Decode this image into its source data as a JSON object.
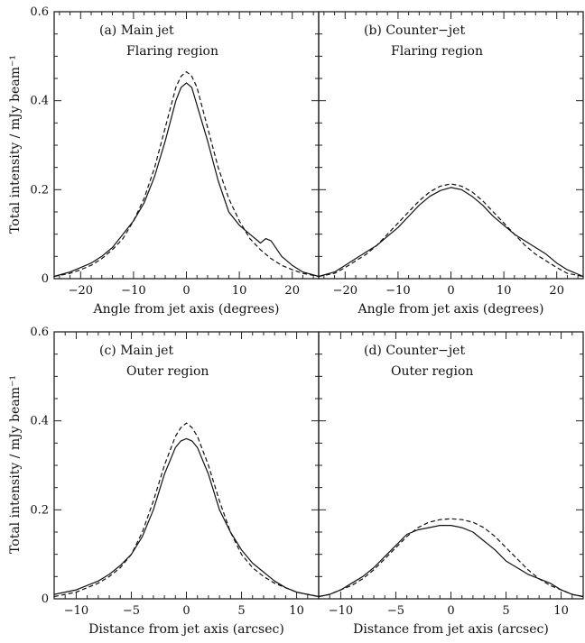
{
  "figure": {
    "ylabel": "Total intensity / mJy beam⁻¹"
  },
  "chart_data": [
    {
      "type": "line",
      "panel": "(a) Main jet",
      "label_line1": "(a) Main jet",
      "label_line2": "Flaring region",
      "xlabel": "Angle from jet axis (degrees)",
      "ylabel": "Total intensity / mJy beam⁻¹",
      "xlim": [
        -25,
        25
      ],
      "ylim": [
        0,
        0.6
      ],
      "xticks": [
        -20,
        -10,
        0,
        10,
        20
      ],
      "xtick_labels": [
        "−20",
        "−10",
        "0",
        "10",
        "20"
      ],
      "yticks": [
        0,
        0.2,
        0.4,
        0.6
      ],
      "ytick_labels": [
        "0",
        "0.2",
        "0.4",
        "0.6"
      ],
      "show_xtick_labels": true,
      "show_ytick_labels": true,
      "series": [
        {
          "style": "solid",
          "x": [
            -25,
            -22,
            -20,
            -18,
            -16,
            -14,
            -12,
            -10,
            -8,
            -6,
            -4,
            -2,
            -1,
            0,
            1,
            2,
            4,
            6,
            8,
            10,
            12,
            14,
            15,
            16,
            18,
            20,
            22,
            25
          ],
          "y": [
            0.005,
            0.015,
            0.025,
            0.035,
            0.05,
            0.07,
            0.1,
            0.13,
            0.17,
            0.23,
            0.31,
            0.4,
            0.43,
            0.44,
            0.43,
            0.39,
            0.31,
            0.22,
            0.15,
            0.12,
            0.1,
            0.08,
            0.09,
            0.085,
            0.05,
            0.03,
            0.015,
            0.005
          ]
        },
        {
          "style": "dashed",
          "x": [
            -25,
            -22,
            -20,
            -18,
            -16,
            -14,
            -12,
            -10,
            -8,
            -6,
            -4,
            -2,
            -1,
            0,
            1,
            2,
            4,
            6,
            8,
            10,
            12,
            14,
            16,
            18,
            20,
            22,
            25
          ],
          "y": [
            0.005,
            0.012,
            0.02,
            0.03,
            0.045,
            0.065,
            0.09,
            0.13,
            0.18,
            0.25,
            0.34,
            0.43,
            0.455,
            0.465,
            0.455,
            0.43,
            0.34,
            0.25,
            0.18,
            0.13,
            0.09,
            0.065,
            0.045,
            0.03,
            0.02,
            0.012,
            0.005
          ]
        }
      ]
    },
    {
      "type": "line",
      "panel": "(b) Counter-jet",
      "label_line1": "(b) Counter−jet",
      "label_line2": "Flaring region",
      "xlabel": "Angle from jet axis (degrees)",
      "ylabel": "",
      "xlim": [
        -25,
        25
      ],
      "ylim": [
        0,
        0.6
      ],
      "xticks": [
        -20,
        -10,
        0,
        10,
        20
      ],
      "xtick_labels": [
        "−20",
        "−10",
        "0",
        "10",
        "20"
      ],
      "yticks": [
        0,
        0.2,
        0.4,
        0.6
      ],
      "ytick_labels": [
        "",
        "",
        "",
        ""
      ],
      "show_xtick_labels": true,
      "show_ytick_labels": false,
      "series": [
        {
          "style": "solid",
          "x": [
            -25,
            -22,
            -20,
            -18,
            -16,
            -14,
            -12,
            -10,
            -8,
            -6,
            -4,
            -2,
            0,
            2,
            4,
            6,
            8,
            10,
            12,
            14,
            16,
            18,
            20,
            22,
            25
          ],
          "y": [
            0.005,
            0.015,
            0.03,
            0.045,
            0.06,
            0.075,
            0.095,
            0.115,
            0.14,
            0.165,
            0.185,
            0.198,
            0.205,
            0.2,
            0.185,
            0.165,
            0.14,
            0.12,
            0.1,
            0.085,
            0.07,
            0.055,
            0.035,
            0.02,
            0.005
          ]
        },
        {
          "style": "dashed",
          "x": [
            -25,
            -22,
            -20,
            -18,
            -16,
            -14,
            -12,
            -10,
            -8,
            -6,
            -4,
            -2,
            0,
            2,
            4,
            6,
            8,
            10,
            12,
            14,
            16,
            18,
            20,
            22,
            25
          ],
          "y": [
            0.005,
            0.012,
            0.025,
            0.04,
            0.055,
            0.075,
            0.1,
            0.125,
            0.15,
            0.175,
            0.195,
            0.208,
            0.213,
            0.208,
            0.195,
            0.175,
            0.15,
            0.125,
            0.1,
            0.075,
            0.055,
            0.04,
            0.025,
            0.012,
            0.005
          ]
        }
      ]
    },
    {
      "type": "line",
      "panel": "(c) Main jet",
      "label_line1": "(c) Main jet",
      "label_line2": "Outer region",
      "xlabel": "Distance from jet axis (arcsec)",
      "ylabel": "Total intensity / mJy beam⁻¹",
      "xlim": [
        -12,
        12
      ],
      "ylim": [
        0,
        0.6
      ],
      "xticks": [
        -10,
        -5,
        0,
        5,
        10
      ],
      "xtick_labels": [
        "−10",
        "−5",
        "0",
        "5",
        "10"
      ],
      "yticks": [
        0,
        0.2,
        0.4,
        0.6
      ],
      "ytick_labels": [
        "0",
        "0.2",
        "0.4",
        "0.6"
      ],
      "show_xtick_labels": true,
      "show_ytick_labels": true,
      "series": [
        {
          "style": "solid",
          "x": [
            -12,
            -11,
            -10,
            -9,
            -8,
            -7,
            -6,
            -5,
            -4,
            -3,
            -2,
            -1,
            -0.5,
            0,
            0.5,
            1,
            2,
            3,
            4,
            5,
            6,
            7,
            8,
            9,
            10,
            11,
            12
          ],
          "y": [
            0.01,
            0.015,
            0.02,
            0.03,
            0.04,
            0.055,
            0.075,
            0.1,
            0.14,
            0.2,
            0.28,
            0.34,
            0.355,
            0.36,
            0.355,
            0.34,
            0.28,
            0.2,
            0.15,
            0.11,
            0.08,
            0.06,
            0.04,
            0.025,
            0.015,
            0.01,
            0.005
          ]
        },
        {
          "style": "dashed",
          "x": [
            -12,
            -11,
            -10,
            -9,
            -8,
            -7,
            -6,
            -5,
            -4,
            -3,
            -2,
            -1,
            -0.5,
            0,
            0.5,
            1,
            2,
            3,
            4,
            5,
            6,
            7,
            8,
            9,
            10,
            11,
            12
          ],
          "y": [
            0.005,
            0.01,
            0.015,
            0.025,
            0.035,
            0.05,
            0.07,
            0.1,
            0.15,
            0.22,
            0.3,
            0.365,
            0.385,
            0.395,
            0.385,
            0.365,
            0.3,
            0.22,
            0.15,
            0.1,
            0.07,
            0.05,
            0.035,
            0.025,
            0.015,
            0.01,
            0.005
          ]
        }
      ]
    },
    {
      "type": "line",
      "panel": "(d) Counter-jet",
      "label_line1": "(d) Counter−jet",
      "label_line2": "Outer region",
      "xlabel": "Distance from jet axis (arcsec)",
      "ylabel": "",
      "xlim": [
        -12,
        12
      ],
      "ylim": [
        0,
        0.6
      ],
      "xticks": [
        -10,
        -5,
        0,
        5,
        10
      ],
      "xtick_labels": [
        "−10",
        "−5",
        "0",
        "5",
        "10"
      ],
      "yticks": [
        0,
        0.2,
        0.4,
        0.6
      ],
      "ytick_labels": [
        "",
        "",
        "",
        ""
      ],
      "show_xtick_labels": true,
      "show_ytick_labels": false,
      "series": [
        {
          "style": "solid",
          "x": [
            -12,
            -11,
            -10,
            -9,
            -8,
            -7,
            -6,
            -5,
            -4,
            -3,
            -2,
            -1,
            0,
            1,
            2,
            3,
            4,
            5,
            6,
            7,
            8,
            9,
            10,
            11,
            12
          ],
          "y": [
            0.005,
            0.01,
            0.02,
            0.035,
            0.05,
            0.07,
            0.095,
            0.12,
            0.145,
            0.155,
            0.16,
            0.165,
            0.165,
            0.16,
            0.15,
            0.13,
            0.11,
            0.085,
            0.07,
            0.055,
            0.045,
            0.035,
            0.02,
            0.01,
            0.005
          ]
        },
        {
          "style": "dashed",
          "x": [
            -12,
            -11,
            -10,
            -9,
            -8,
            -7,
            -6,
            -5,
            -4,
            -3,
            -2,
            -1,
            0,
            1,
            2,
            3,
            4,
            5,
            6,
            7,
            8,
            9,
            10,
            11,
            12
          ],
          "y": [
            0.005,
            0.01,
            0.02,
            0.03,
            0.045,
            0.065,
            0.09,
            0.115,
            0.14,
            0.16,
            0.172,
            0.178,
            0.18,
            0.178,
            0.172,
            0.16,
            0.14,
            0.115,
            0.09,
            0.065,
            0.045,
            0.03,
            0.02,
            0.01,
            0.005
          ]
        }
      ]
    }
  ]
}
